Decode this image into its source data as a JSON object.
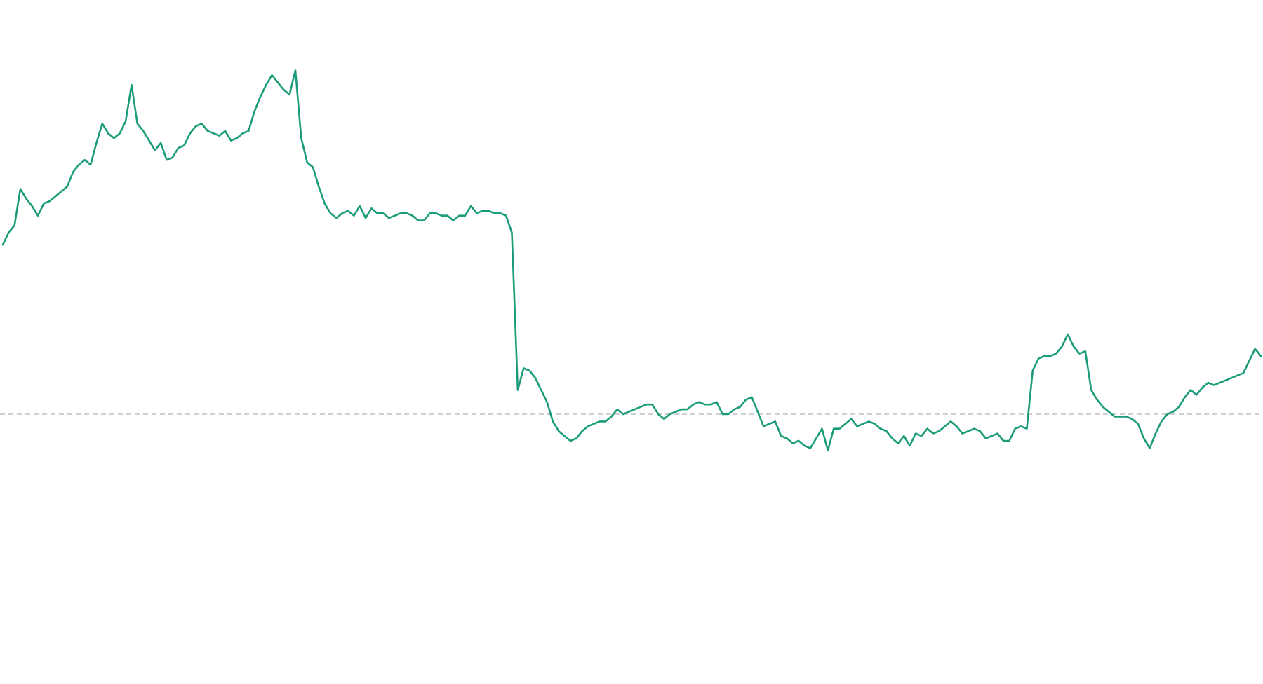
{
  "chart_data": {
    "type": "line",
    "colors": {
      "line": "#1a9b7a",
      "baseline": "#b5b5b5",
      "background": "#ffffff"
    },
    "baseline_value": 0,
    "ylim": [
      -10,
      25
    ],
    "grid": false,
    "legend": "none",
    "y": [
      7,
      7.5,
      7.8,
      9.3,
      8.9,
      8.6,
      8.2,
      8.7,
      8.8,
      9,
      9.2,
      9.4,
      10,
      10.3,
      10.5,
      10.3,
      11.2,
      12,
      11.6,
      11.4,
      11.6,
      12.1,
      13.6,
      12,
      11.7,
      11.3,
      10.9,
      11.2,
      10.5,
      10.6,
      11,
      11.1,
      11.6,
      11.9,
      12,
      11.7,
      11.6,
      11.5,
      11.7,
      11.3,
      11.4,
      11.6,
      11.7,
      12.5,
      13.1,
      13.6,
      14,
      13.7,
      13.4,
      13.2,
      14.2,
      11.4,
      10.4,
      10.2,
      9.4,
      8.7,
      8.3,
      8.1,
      8.3,
      8.4,
      8.2,
      8.6,
      8.1,
      8.5,
      8.3,
      8.3,
      8.1,
      8.2,
      8.3,
      8.3,
      8.2,
      8,
      8,
      8.3,
      8.3,
      8.2,
      8.2,
      8,
      8.2,
      8.2,
      8.6,
      8.3,
      8.4,
      8.4,
      8.3,
      8.3,
      8.2,
      7.5,
      1,
      1.9,
      1.8,
      1.5,
      1,
      0.5,
      -0.3,
      -0.7,
      -0.9,
      -1.1,
      -1,
      -0.7,
      -0.5,
      -0.4,
      -0.3,
      -0.3,
      -0.1,
      0.2,
      0,
      0.1,
      0.2,
      0.3,
      0.4,
      0.4,
      0,
      -0.2,
      0,
      0.1,
      0.2,
      0.2,
      0.4,
      0.5,
      0.4,
      0.4,
      0.5,
      0,
      0,
      0.2,
      0.3,
      0.6,
      0.7,
      0.1,
      -0.5,
      -0.4,
      -0.3,
      -0.9,
      -1,
      -1.2,
      -1.1,
      -1.3,
      -1.4,
      -1,
      -0.6,
      -1.5,
      -0.6,
      -0.6,
      -0.4,
      -0.2,
      -0.5,
      -0.4,
      -0.3,
      -0.4,
      -0.6,
      -0.7,
      -1,
      -1.2,
      -0.9,
      -1.3,
      -0.8,
      -0.9,
      -0.6,
      -0.8,
      -0.7,
      -0.5,
      -0.3,
      -0.5,
      -0.8,
      -0.7,
      -0.6,
      -0.7,
      -1,
      -0.9,
      -0.8,
      -1.1,
      -1.1,
      -0.6,
      -0.5,
      -0.6,
      1.8,
      2.3,
      2.4,
      2.4,
      2.5,
      2.8,
      3.3,
      2.8,
      2.5,
      2.6,
      1,
      0.6,
      0.3,
      0.1,
      -0.1,
      -0.1,
      -0.1,
      -0.2,
      -0.4,
      -1,
      -1.4,
      -0.8,
      -0.3,
      0,
      0.1,
      0.3,
      0.7,
      1,
      0.8,
      1.1,
      1.3,
      1.2,
      1.3,
      1.4,
      1.5,
      1.6,
      1.7,
      2.2,
      2.7,
      2.4
    ]
  }
}
